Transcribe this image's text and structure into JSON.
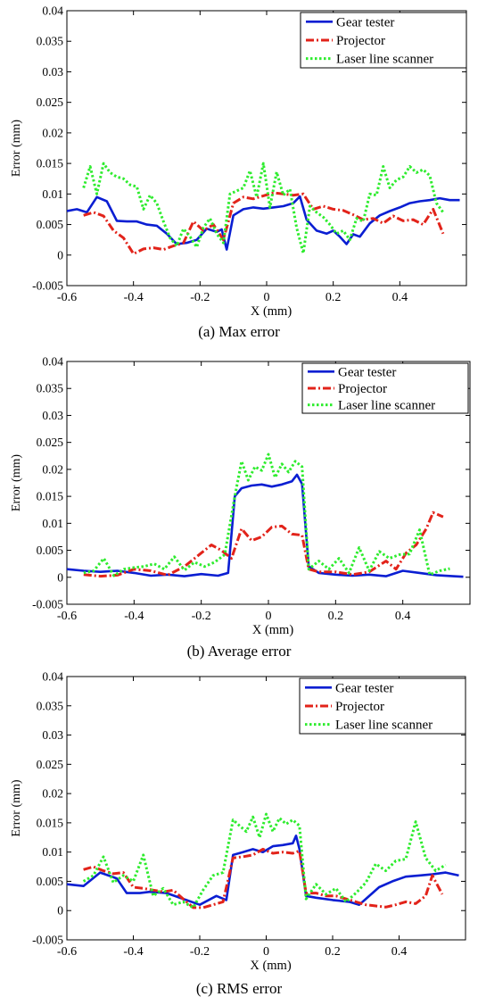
{
  "panels": [
    {
      "caption": "(a) Max error",
      "chart_data": {
        "type": "line",
        "title": "",
        "xlabel": "X (mm)",
        "ylabel": "Error (mm)",
        "xlim": [
          -0.6,
          0.6
        ],
        "ylim": [
          -0.005,
          0.04
        ],
        "xticks": [
          "-0.6",
          "-0.4",
          "-0.2",
          "0",
          "0.2",
          "0.4"
        ],
        "yticks": [
          "-0.005",
          "0",
          "0.005",
          "0.01",
          "0.015",
          "0.02",
          "0.025",
          "0.03",
          "0.035",
          "0.04"
        ],
        "legend_position": "top-right",
        "series": [
          {
            "name": "Gear tester",
            "color": "#0a1ed2",
            "style": "solid",
            "x": [
              -0.6,
              -0.57,
              -0.54,
              -0.51,
              -0.48,
              -0.45,
              -0.42,
              -0.39,
              -0.36,
              -0.33,
              -0.3,
              -0.27,
              -0.24,
              -0.21,
              -0.18,
              -0.15,
              -0.135,
              -0.12,
              -0.1,
              -0.07,
              -0.04,
              -0.01,
              0.02,
              0.05,
              0.08,
              0.1,
              0.12,
              0.15,
              0.18,
              0.2,
              0.22,
              0.24,
              0.26,
              0.28,
              0.31,
              0.34,
              0.37,
              0.4,
              0.43,
              0.46,
              0.49,
              0.52,
              0.55,
              0.58
            ],
            "y": [
              0.0072,
              0.0075,
              0.007,
              0.0095,
              0.0088,
              0.0056,
              0.0055,
              0.0055,
              0.005,
              0.0048,
              0.0035,
              0.0018,
              0.002,
              0.0025,
              0.0043,
              0.0038,
              0.0042,
              0.0009,
              0.0065,
              0.0075,
              0.0078,
              0.0076,
              0.0078,
              0.008,
              0.0085,
              0.0096,
              0.0058,
              0.004,
              0.0035,
              0.004,
              0.003,
              0.0018,
              0.0034,
              0.003,
              0.0052,
              0.0065,
              0.0072,
              0.0078,
              0.0085,
              0.0088,
              0.009,
              0.0093,
              0.009,
              0.009
            ]
          },
          {
            "name": "Projector",
            "color": "#e2231a",
            "style": "dashdot",
            "x": [
              -0.55,
              -0.52,
              -0.49,
              -0.46,
              -0.43,
              -0.4,
              -0.37,
              -0.34,
              -0.31,
              -0.28,
              -0.25,
              -0.22,
              -0.19,
              -0.16,
              -0.13,
              -0.1,
              -0.07,
              -0.04,
              -0.01,
              0.02,
              0.05,
              0.08,
              0.11,
              0.14,
              0.17,
              0.2,
              0.23,
              0.26,
              0.29,
              0.32,
              0.35,
              0.38,
              0.41,
              0.44,
              0.47,
              0.5,
              0.53
            ],
            "y": [
              0.0065,
              0.007,
              0.0064,
              0.004,
              0.0028,
              0.0002,
              0.001,
              0.0012,
              0.0009,
              0.0015,
              0.002,
              0.0055,
              0.004,
              0.005,
              0.0025,
              0.0085,
              0.0095,
              0.0092,
              0.0097,
              0.0102,
              0.01,
              0.0098,
              0.01,
              0.0075,
              0.008,
              0.0075,
              0.0073,
              0.0066,
              0.0058,
              0.006,
              0.0052,
              0.0064,
              0.0056,
              0.0058,
              0.005,
              0.0075,
              0.0035
            ]
          },
          {
            "name": "Laser line scanner",
            "color": "#2eec2e",
            "style": "dotted",
            "x": [
              -0.55,
              -0.53,
              -0.51,
              -0.49,
              -0.47,
              -0.45,
              -0.43,
              -0.41,
              -0.39,
              -0.37,
              -0.35,
              -0.33,
              -0.31,
              -0.29,
              -0.27,
              -0.25,
              -0.23,
              -0.21,
              -0.19,
              -0.17,
              -0.15,
              -0.13,
              -0.11,
              -0.09,
              -0.07,
              -0.05,
              -0.03,
              -0.01,
              0.01,
              0.03,
              0.05,
              0.07,
              0.09,
              0.11,
              0.13,
              0.15,
              0.17,
              0.19,
              0.21,
              0.23,
              0.25,
              0.27,
              0.29,
              0.31,
              0.33,
              0.35,
              0.37,
              0.39,
              0.41,
              0.43,
              0.45,
              0.47,
              0.49,
              0.51,
              0.53
            ],
            "y": [
              0.011,
              0.0145,
              0.01,
              0.015,
              0.0135,
              0.0128,
              0.0125,
              0.0115,
              0.0112,
              0.0075,
              0.0098,
              0.0085,
              0.0055,
              0.0028,
              0.0015,
              0.0043,
              0.003,
              0.0013,
              0.0045,
              0.006,
              0.0035,
              0.002,
              0.01,
              0.0105,
              0.011,
              0.0138,
              0.0095,
              0.015,
              0.0078,
              0.0136,
              0.0098,
              0.0108,
              0.0045,
              0.0003,
              0.008,
              0.007,
              0.0062,
              0.005,
              0.0035,
              0.004,
              0.0025,
              0.006,
              0.0055,
              0.01,
              0.0098,
              0.0145,
              0.011,
              0.0123,
              0.0128,
              0.0145,
              0.0135,
              0.014,
              0.013,
              0.0085,
              0.007
            ]
          }
        ]
      }
    },
    {
      "caption": "(b) Average error",
      "chart_data": {
        "type": "line",
        "title": "",
        "xlabel": "X (mm)",
        "ylabel": "Error (mm)",
        "xlim": [
          -0.6,
          0.6
        ],
        "ylim": [
          -0.005,
          0.04
        ],
        "xticks": [
          "-0.6",
          "-0.4",
          "-0.2",
          "0",
          "0.2",
          "0.4"
        ],
        "yticks": [
          "-0.005",
          "0",
          "0.005",
          "0.01",
          "0.015",
          "0.02",
          "0.025",
          "0.03",
          "0.035",
          "0.04"
        ],
        "legend_position": "top-right",
        "series": [
          {
            "name": "Gear tester",
            "color": "#0a1ed2",
            "style": "solid",
            "x": [
              -0.6,
              -0.55,
              -0.5,
              -0.45,
              -0.4,
              -0.35,
              -0.3,
              -0.25,
              -0.2,
              -0.15,
              -0.12,
              -0.1,
              -0.08,
              -0.05,
              -0.02,
              0.01,
              0.04,
              0.07,
              0.085,
              0.1,
              0.12,
              0.15,
              0.2,
              0.25,
              0.3,
              0.35,
              0.4,
              0.45,
              0.5,
              0.55,
              0.58
            ],
            "y": [
              0.0015,
              0.0012,
              0.001,
              0.0012,
              0.0008,
              0.0003,
              0.0005,
              0.0002,
              0.0006,
              0.0003,
              0.0008,
              0.015,
              0.0165,
              0.017,
              0.0172,
              0.0168,
              0.0172,
              0.0178,
              0.019,
              0.0173,
              0.002,
              0.0008,
              0.0005,
              0.0003,
              0.0005,
              0.0002,
              0.0012,
              0.0008,
              0.0004,
              0.0002,
              0.0001
            ]
          },
          {
            "name": "Projector",
            "color": "#e2231a",
            "style": "dashdot",
            "x": [
              -0.55,
              -0.5,
              -0.45,
              -0.4,
              -0.35,
              -0.3,
              -0.25,
              -0.2,
              -0.17,
              -0.14,
              -0.11,
              -0.08,
              -0.05,
              -0.02,
              0.01,
              0.04,
              0.07,
              0.1,
              0.12,
              0.15,
              0.2,
              0.25,
              0.3,
              0.35,
              0.38,
              0.41,
              0.44,
              0.47,
              0.49,
              0.52
            ],
            "y": [
              0.0005,
              0.0002,
              0.0004,
              0.0015,
              0.0012,
              0.0004,
              0.002,
              0.0045,
              0.006,
              0.005,
              0.0035,
              0.009,
              0.0068,
              0.0075,
              0.0093,
              0.0095,
              0.008,
              0.0078,
              0.0015,
              0.001,
              0.001,
              0.0005,
              0.001,
              0.003,
              0.0015,
              0.0045,
              0.006,
              0.009,
              0.012,
              0.0112
            ]
          },
          {
            "name": "Laser line scanner",
            "color": "#2eec2e",
            "style": "dotted",
            "x": [
              -0.55,
              -0.52,
              -0.49,
              -0.46,
              -0.43,
              -0.4,
              -0.37,
              -0.34,
              -0.31,
              -0.28,
              -0.25,
              -0.22,
              -0.19,
              -0.16,
              -0.13,
              -0.1,
              -0.08,
              -0.06,
              -0.04,
              -0.02,
              0.0,
              0.02,
              0.04,
              0.06,
              0.08,
              0.1,
              0.12,
              0.15,
              0.18,
              0.21,
              0.24,
              0.27,
              0.3,
              0.33,
              0.36,
              0.39,
              0.42,
              0.45,
              0.48,
              0.51,
              0.54
            ],
            "y": [
              0.0008,
              0.0012,
              0.0035,
              0.0003,
              0.0015,
              0.0018,
              0.002,
              0.0025,
              0.0015,
              0.0038,
              0.0013,
              0.0028,
              0.002,
              0.0028,
              0.0042,
              0.015,
              0.0215,
              0.018,
              0.0205,
              0.0198,
              0.0228,
              0.0185,
              0.021,
              0.0195,
              0.0215,
              0.0205,
              0.0015,
              0.003,
              0.0015,
              0.0035,
              0.0008,
              0.0055,
              0.0012,
              0.0048,
              0.0035,
              0.0042,
              0.0043,
              0.0088,
              0.0005,
              0.0012,
              0.0016
            ]
          }
        ]
      }
    },
    {
      "caption": "(c) RMS error",
      "chart_data": {
        "type": "line",
        "title": "",
        "xlabel": "X (mm)",
        "ylabel": "Error (mm)",
        "xlim": [
          -0.6,
          0.6
        ],
        "ylim": [
          -0.005,
          0.04
        ],
        "xticks": [
          "-0.6",
          "-0.4",
          "-0.2",
          "0",
          "0.2",
          "0.4"
        ],
        "yticks": [
          "-0.005",
          "0",
          "0.005",
          "0.01",
          "0.015",
          "0.02",
          "0.025",
          "0.03",
          "0.035",
          "0.04"
        ],
        "legend_position": "top-right",
        "series": [
          {
            "name": "Gear tester",
            "color": "#0a1ed2",
            "style": "solid",
            "x": [
              -0.6,
              -0.55,
              -0.5,
              -0.45,
              -0.42,
              -0.38,
              -0.35,
              -0.3,
              -0.25,
              -0.2,
              -0.15,
              -0.12,
              -0.1,
              -0.07,
              -0.04,
              -0.01,
              0.02,
              0.05,
              0.08,
              0.09,
              0.1,
              0.12,
              0.15,
              0.2,
              0.25,
              0.28,
              0.3,
              0.34,
              0.38,
              0.42,
              0.46,
              0.5,
              0.54,
              0.58
            ],
            "y": [
              0.0045,
              0.0042,
              0.0065,
              0.0055,
              0.003,
              0.003,
              0.0032,
              0.003,
              0.002,
              0.001,
              0.0025,
              0.0018,
              0.0095,
              0.01,
              0.0105,
              0.01,
              0.011,
              0.0112,
              0.0115,
              0.0128,
              0.0105,
              0.0025,
              0.0022,
              0.0018,
              0.0015,
              0.001,
              0.002,
              0.004,
              0.005,
              0.0058,
              0.006,
              0.0062,
              0.0065,
              0.006
            ]
          },
          {
            "name": "Projector",
            "color": "#e2231a",
            "style": "dashdot",
            "x": [
              -0.55,
              -0.52,
              -0.49,
              -0.46,
              -0.43,
              -0.4,
              -0.37,
              -0.34,
              -0.31,
              -0.28,
              -0.25,
              -0.22,
              -0.19,
              -0.16,
              -0.13,
              -0.1,
              -0.07,
              -0.04,
              -0.01,
              0.02,
              0.05,
              0.08,
              0.1,
              0.12,
              0.15,
              0.18,
              0.21,
              0.24,
              0.27,
              0.3,
              0.33,
              0.36,
              0.39,
              0.42,
              0.45,
              0.48,
              0.5,
              0.53
            ],
            "y": [
              0.007,
              0.0075,
              0.0068,
              0.0063,
              0.0065,
              0.004,
              0.0038,
              0.0035,
              0.0032,
              0.0035,
              0.002,
              0.0005,
              0.0005,
              0.001,
              0.0015,
              0.009,
              0.0092,
              0.0095,
              0.0105,
              0.0098,
              0.01,
              0.0098,
              0.0102,
              0.003,
              0.003,
              0.0025,
              0.0025,
              0.002,
              0.0015,
              0.001,
              0.0008,
              0.0006,
              0.001,
              0.0015,
              0.0012,
              0.0025,
              0.006,
              0.0028
            ]
          },
          {
            "name": "Laser line scanner",
            "color": "#2eec2e",
            "style": "dotted",
            "x": [
              -0.55,
              -0.52,
              -0.49,
              -0.46,
              -0.43,
              -0.4,
              -0.37,
              -0.34,
              -0.31,
              -0.28,
              -0.25,
              -0.22,
              -0.19,
              -0.16,
              -0.13,
              -0.1,
              -0.08,
              -0.06,
              -0.04,
              -0.02,
              0.0,
              0.02,
              0.04,
              0.06,
              0.08,
              0.1,
              0.12,
              0.15,
              0.18,
              0.21,
              0.24,
              0.27,
              0.3,
              0.33,
              0.36,
              0.39,
              0.42,
              0.45,
              0.48,
              0.51,
              0.54
            ],
            "y": [
              0.005,
              0.006,
              0.0092,
              0.0048,
              0.006,
              0.005,
              0.0095,
              0.0025,
              0.0038,
              0.001,
              0.0015,
              0.0005,
              0.0035,
              0.006,
              0.0065,
              0.0155,
              0.0145,
              0.0135,
              0.016,
              0.0125,
              0.0165,
              0.0135,
              0.0158,
              0.0148,
              0.0155,
              0.0145,
              0.002,
              0.0045,
              0.0028,
              0.0038,
              0.0015,
              0.003,
              0.0048,
              0.008,
              0.0068,
              0.0085,
              0.0088,
              0.0152,
              0.009,
              0.0068,
              0.0078
            ]
          }
        ]
      }
    }
  ]
}
